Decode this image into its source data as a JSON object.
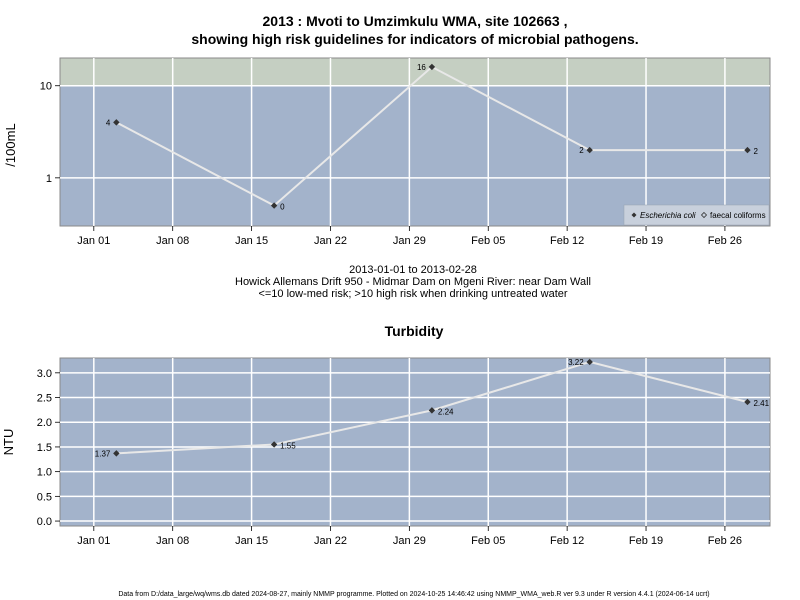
{
  "chart_data": [
    {
      "type": "line",
      "title_line1": "2013 : Mvoti to Umzimkulu WMA, site 102663 ,",
      "title_line2": "showing high risk guidelines for indicators of microbial pathogens.",
      "ylabel": "/100mL",
      "yscale": "log",
      "ylim": [
        0.3,
        20
      ],
      "yticks": [
        1,
        10
      ],
      "ytick_labels": [
        "1",
        "10"
      ],
      "high_risk_threshold": 10,
      "xlim": [
        "2012-12-29",
        "2013-03-02"
      ],
      "xticks": [
        "2013-01-01",
        "2013-01-08",
        "2013-01-15",
        "2013-01-22",
        "2013-01-29",
        "2013-02-05",
        "2013-02-12",
        "2013-02-19",
        "2013-02-26"
      ],
      "xtick_labels": [
        "Jan 01",
        "Jan 08",
        "Jan 15",
        "Jan 22",
        "Jan 29",
        "Feb 05",
        "Feb 12",
        "Feb 19",
        "Feb 26"
      ],
      "series": [
        {
          "name": "Escherichia coli",
          "marker": "filled-diamond",
          "x": [
            "2013-01-03",
            "2013-01-17",
            "2013-01-31",
            "2013-02-14",
            "2013-02-28"
          ],
          "y": [
            4,
            0.5,
            16,
            2,
            2
          ],
          "labels": [
            "4",
            "0",
            "16",
            "2",
            "2"
          ]
        }
      ],
      "legend": [
        "Escherichia coli",
        "faecal coliforms"
      ],
      "legend_position": "bottom-right",
      "grid": true,
      "colors": {
        "panel": "#a3b3cb",
        "risk_band": "#c5cfc2",
        "line": "#e8e8e8",
        "marker": "#333333",
        "grid": "#ffffff"
      }
    },
    {
      "type": "line",
      "title": "Turbidity",
      "ylabel": "NTU",
      "ylim": [
        -0.1,
        3.3
      ],
      "yticks": [
        0.0,
        0.5,
        1.0,
        1.5,
        2.0,
        2.5,
        3.0
      ],
      "ytick_labels": [
        "0.0",
        "0.5",
        "1.0",
        "1.5",
        "2.0",
        "2.5",
        "3.0"
      ],
      "xlim": [
        "2012-12-29",
        "2013-03-02"
      ],
      "xticks": [
        "2013-01-01",
        "2013-01-08",
        "2013-01-15",
        "2013-01-22",
        "2013-01-29",
        "2013-02-05",
        "2013-02-12",
        "2013-02-19",
        "2013-02-26"
      ],
      "xtick_labels": [
        "Jan 01",
        "Jan 08",
        "Jan 15",
        "Jan 22",
        "Jan 29",
        "Feb 05",
        "Feb 12",
        "Feb 19",
        "Feb 26"
      ],
      "series": [
        {
          "marker": "filled-diamond",
          "x": [
            "2013-01-03",
            "2013-01-17",
            "2013-01-31",
            "2013-02-14",
            "2013-02-28"
          ],
          "y": [
            1.37,
            1.55,
            2.24,
            3.22,
            2.41
          ],
          "labels": [
            "1.37",
            "1.55",
            "2.24",
            "3.22",
            "2.41"
          ]
        }
      ],
      "grid": true,
      "colors": {
        "panel": "#a3b3cb",
        "line": "#e8e8e8",
        "marker": "#333333",
        "grid": "#ffffff"
      }
    }
  ],
  "caption": {
    "date_range": "2013-01-01 to 2013-02-28",
    "site": "Howick Allemans Drift 950 - Midmar Dam on Mgeni River: near Dam Wall",
    "risk_note": "<=10 low-med risk; >10 high risk when drinking untreated water"
  },
  "footnote": "Data from D:/data_large/wq/wms.db dated 2024-08-27, mainly NMMP programme. Plotted on 2024-10-25 14:46:42 using NMMP_WMA_web.R ver 9.3 under R version 4.4.1 (2024-06-14 ucrt)"
}
